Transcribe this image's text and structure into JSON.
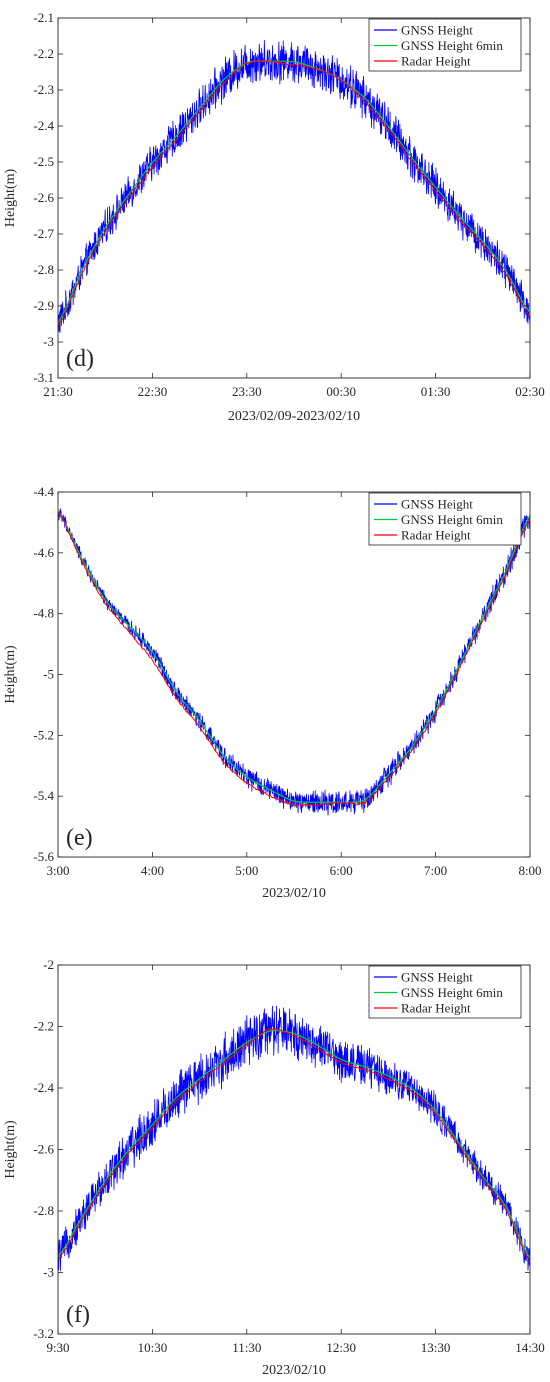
{
  "chart_data": [
    {
      "type": "line",
      "panel_label": "(d)",
      "xlabel": "2023/02/09-2023/02/10",
      "ylabel": "Height(m)",
      "x_ticks": [
        "21:30",
        "22:30",
        "23:30",
        "00:30",
        "01:30",
        "02:30"
      ],
      "y_ticks": [
        "-2.1",
        "-2.2",
        "-2.3",
        "-2.4",
        "-2.5",
        "-2.6",
        "-2.7",
        "-2.8",
        "-2.9",
        "-3",
        "-3.1"
      ],
      "xlim": [
        0,
        5
      ],
      "ylim": [
        -3.1,
        -2.1
      ],
      "grid": false,
      "legend_position": "top-right",
      "x": [
        0,
        0.25,
        0.5,
        0.75,
        1,
        1.25,
        1.5,
        1.75,
        2,
        2.25,
        2.5,
        2.75,
        3,
        3.25,
        3.5,
        3.75,
        4,
        4.25,
        4.5,
        4.75,
        5
      ],
      "noise_amplitude": [
        0.04,
        0.04,
        0.04,
        0.04,
        0.045,
        0.045,
        0.045,
        0.05,
        0.05,
        0.05,
        0.05,
        0.05,
        0.05,
        0.05,
        0.05,
        0.05,
        0.045,
        0.045,
        0.045,
        0.045,
        0.045
      ],
      "series": [
        {
          "name": "GNSS Height",
          "color": "#0000ff",
          "values": [
            -2.96,
            -2.8,
            -2.68,
            -2.59,
            -2.5,
            -2.43,
            -2.35,
            -2.27,
            -2.22,
            -2.22,
            -2.22,
            -2.24,
            -2.27,
            -2.32,
            -2.4,
            -2.49,
            -2.57,
            -2.65,
            -2.72,
            -2.8,
            -2.93
          ]
        },
        {
          "name": "GNSS Height 6min",
          "color": "#00cc33",
          "values": [
            -2.96,
            -2.8,
            -2.68,
            -2.59,
            -2.5,
            -2.43,
            -2.35,
            -2.27,
            -2.22,
            -2.22,
            -2.22,
            -2.24,
            -2.27,
            -2.32,
            -2.4,
            -2.49,
            -2.57,
            -2.65,
            -2.72,
            -2.8,
            -2.93
          ]
        },
        {
          "name": "Radar Height",
          "color": "#ff0000",
          "values": [
            -2.97,
            -2.81,
            -2.69,
            -2.6,
            -2.51,
            -2.44,
            -2.36,
            -2.28,
            -2.22,
            -2.22,
            -2.23,
            -2.24,
            -2.27,
            -2.33,
            -2.41,
            -2.5,
            -2.58,
            -2.66,
            -2.73,
            -2.81,
            -2.94
          ]
        }
      ]
    },
    {
      "type": "line",
      "panel_label": "(e)",
      "xlabel": "2023/02/10",
      "ylabel": "Height(m)",
      "x_ticks": [
        "3:00",
        "4:00",
        "5:00",
        "6:00",
        "7:00",
        "8:00"
      ],
      "y_ticks": [
        "-4.4",
        "-4.6",
        "-4.8",
        "-5",
        "-5.2",
        "-5.4",
        "-5.6"
      ],
      "xlim": [
        0,
        5
      ],
      "ylim": [
        -5.6,
        -4.4
      ],
      "grid": false,
      "legend_position": "top-right",
      "x": [
        0,
        0.25,
        0.5,
        0.75,
        1,
        1.25,
        1.5,
        1.75,
        2,
        2.25,
        2.5,
        2.75,
        3,
        3.25,
        3.5,
        3.75,
        4,
        4.25,
        4.5,
        4.75,
        5
      ],
      "noise_amplitude": [
        0.02,
        0.02,
        0.02,
        0.02,
        0.025,
        0.025,
        0.025,
        0.03,
        0.03,
        0.03,
        0.03,
        0.035,
        0.035,
        0.035,
        0.035,
        0.03,
        0.03,
        0.03,
        0.03,
        0.035,
        0.035
      ],
      "series": [
        {
          "name": "GNSS Height",
          "color": "#0000ff",
          "values": [
            -4.45,
            -4.62,
            -4.76,
            -4.84,
            -4.92,
            -5.06,
            -5.15,
            -5.27,
            -5.34,
            -5.38,
            -5.42,
            -5.42,
            -5.42,
            -5.42,
            -5.33,
            -5.24,
            -5.12,
            -4.97,
            -4.81,
            -4.66,
            -4.46
          ]
        },
        {
          "name": "GNSS Height 6min",
          "color": "#00cc33",
          "values": [
            -4.45,
            -4.62,
            -4.76,
            -4.84,
            -4.92,
            -5.06,
            -5.15,
            -5.27,
            -5.34,
            -5.38,
            -5.42,
            -5.42,
            -5.42,
            -5.42,
            -5.33,
            -5.24,
            -5.12,
            -4.97,
            -4.81,
            -4.66,
            -4.46
          ]
        },
        {
          "name": "Radar Height",
          "color": "#ff0000",
          "values": [
            -4.45,
            -4.63,
            -4.77,
            -4.86,
            -4.95,
            -5.08,
            -5.17,
            -5.29,
            -5.36,
            -5.4,
            -5.43,
            -5.43,
            -5.42,
            -5.43,
            -5.34,
            -5.25,
            -5.13,
            -4.98,
            -4.82,
            -4.67,
            -4.47
          ]
        }
      ]
    },
    {
      "type": "line",
      "panel_label": "(f)",
      "xlabel": "2023/02/10",
      "ylabel": "Height(m)",
      "x_ticks": [
        "9:30",
        "10:30",
        "11:30",
        "12:30",
        "13:30",
        "14:30"
      ],
      "y_ticks": [
        "-2",
        "-2.2",
        "-2.4",
        "-2.6",
        "-2.8",
        "-3",
        "-3.2"
      ],
      "xlim": [
        0,
        5
      ],
      "ylim": [
        -3.2,
        -2.0
      ],
      "grid": false,
      "legend_position": "top-right",
      "x": [
        0,
        0.25,
        0.5,
        0.75,
        1,
        1.25,
        1.5,
        1.75,
        2,
        2.25,
        2.5,
        2.75,
        3,
        3.25,
        3.5,
        3.75,
        4,
        4.25,
        4.5,
        4.75,
        5
      ],
      "noise_amplitude": [
        0.05,
        0.05,
        0.06,
        0.06,
        0.07,
        0.07,
        0.07,
        0.07,
        0.07,
        0.07,
        0.07,
        0.06,
        0.06,
        0.06,
        0.05,
        0.05,
        0.05,
        0.04,
        0.04,
        0.04,
        0.04
      ],
      "series": [
        {
          "name": "GNSS Height",
          "color": "#0000ff",
          "values": [
            -2.96,
            -2.82,
            -2.7,
            -2.6,
            -2.52,
            -2.43,
            -2.37,
            -2.31,
            -2.25,
            -2.21,
            -2.22,
            -2.26,
            -2.31,
            -2.33,
            -2.36,
            -2.4,
            -2.47,
            -2.58,
            -2.69,
            -2.78,
            -2.97
          ]
        },
        {
          "name": "GNSS Height 6min",
          "color": "#00cc33",
          "values": [
            -2.96,
            -2.82,
            -2.7,
            -2.6,
            -2.52,
            -2.43,
            -2.37,
            -2.31,
            -2.25,
            -2.21,
            -2.22,
            -2.26,
            -2.31,
            -2.33,
            -2.36,
            -2.4,
            -2.47,
            -2.58,
            -2.69,
            -2.78,
            -2.97
          ]
        },
        {
          "name": "Radar Height",
          "color": "#ff0000",
          "values": [
            -2.97,
            -2.83,
            -2.71,
            -2.61,
            -2.53,
            -2.44,
            -2.38,
            -2.32,
            -2.26,
            -2.2,
            -2.23,
            -2.27,
            -2.32,
            -2.34,
            -2.37,
            -2.41,
            -2.48,
            -2.59,
            -2.7,
            -2.79,
            -2.98
          ]
        }
      ]
    }
  ]
}
